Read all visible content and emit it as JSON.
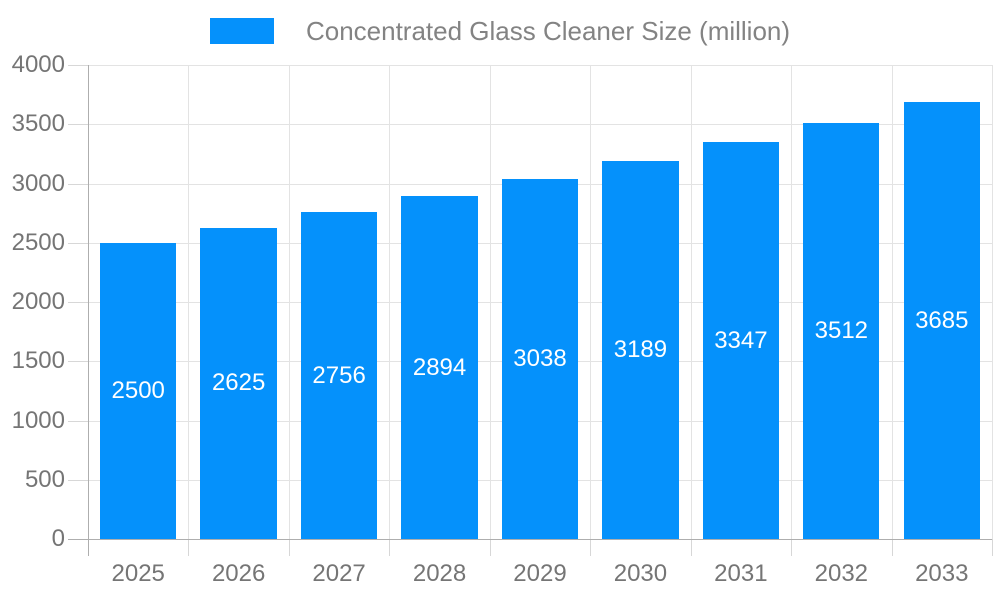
{
  "chart_data": {
    "type": "bar",
    "title": "",
    "series_name": "Concentrated Glass Cleaner Size (million)",
    "categories": [
      "2025",
      "2026",
      "2027",
      "2028",
      "2029",
      "2030",
      "2031",
      "2032",
      "2033"
    ],
    "values": [
      2500,
      2625,
      2756,
      2894,
      3038,
      3189,
      3347,
      3512,
      3685
    ],
    "xlabel": "",
    "ylabel": "",
    "ylim": [
      0,
      4000
    ],
    "ytick_step": 500,
    "yticks": [
      0,
      500,
      1000,
      1500,
      2000,
      2500,
      3000,
      3500,
      4000
    ],
    "grid": true,
    "legend_position": "top",
    "bar_label_position": "inside-center",
    "colors": {
      "bar": "#0591fb",
      "bar_value_label": "#ffffff",
      "axis_text": "#757575",
      "legend_text": "#838383",
      "gridline": "#e3e3e3",
      "tick": "#d7d7d7",
      "axis_line": "#aeaeae",
      "background": "#ffffff"
    }
  }
}
